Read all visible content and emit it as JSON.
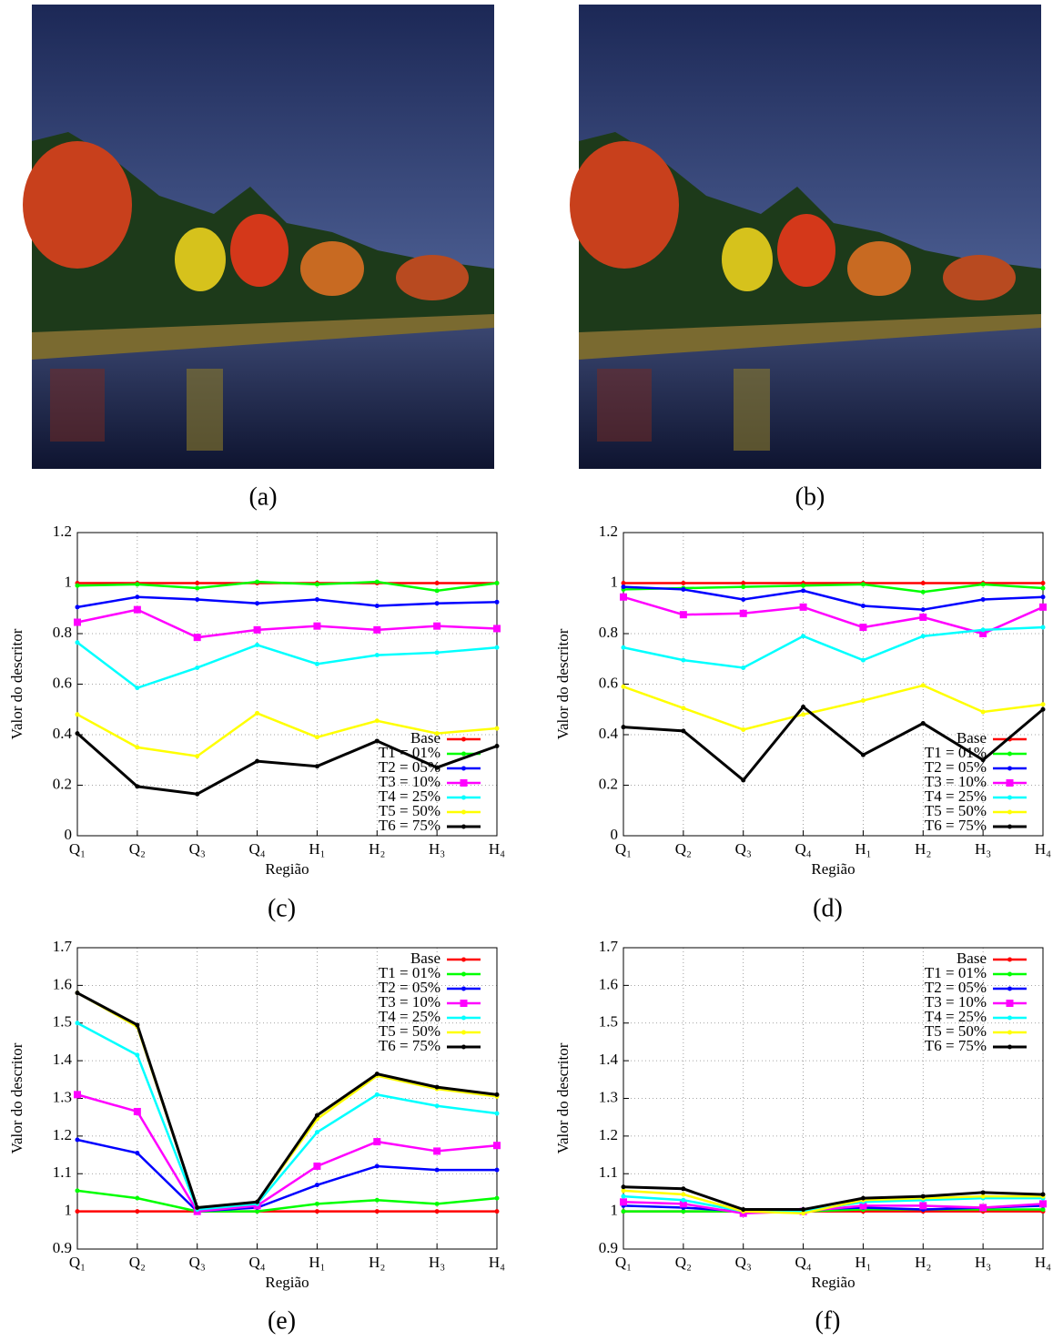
{
  "images": [
    {
      "caption": "(a)"
    },
    {
      "caption": "(b)"
    }
  ],
  "chart_data": [
    {
      "type": "line",
      "caption": "(c)",
      "xlabel": "Região",
      "ylabel": "Valor do descritor",
      "categories": [
        "Q₁",
        "Q₂",
        "Q₃",
        "Q₄",
        "H₁",
        "H₂",
        "H₃",
        "H₄"
      ],
      "ylim": [
        0,
        1.2
      ],
      "yticks": [
        0,
        0.2,
        0.4,
        0.6,
        0.8,
        1,
        1.2
      ],
      "grid": true,
      "legend": "lower right",
      "series": [
        {
          "name": "Base",
          "color": "#ff0000",
          "marker": "circle",
          "values": [
            1,
            1,
            1,
            1,
            1,
            1,
            1,
            1
          ]
        },
        {
          "name": "T1 = 01%",
          "color": "#00ff00",
          "marker": "circle",
          "values": [
            0.99,
            0.995,
            0.98,
            1.005,
            0.995,
            1.005,
            0.97,
            1.0
          ]
        },
        {
          "name": "T2 = 05%",
          "color": "#0000ff",
          "marker": "circle",
          "values": [
            0.905,
            0.945,
            0.935,
            0.92,
            0.935,
            0.91,
            0.92,
            0.925
          ]
        },
        {
          "name": "T3 = 10%",
          "color": "#ff00ff",
          "marker": "square",
          "values": [
            0.845,
            0.895,
            0.785,
            0.815,
            0.83,
            0.815,
            0.83,
            0.82
          ]
        },
        {
          "name": "T4 = 25%",
          "color": "#00ffff",
          "marker": "circle",
          "values": [
            0.765,
            0.585,
            0.665,
            0.755,
            0.68,
            0.715,
            0.725,
            0.745
          ]
        },
        {
          "name": "T5 = 50%",
          "color": "#ffff00",
          "marker": "circle",
          "values": [
            0.48,
            0.35,
            0.315,
            0.485,
            0.39,
            0.455,
            0.405,
            0.425
          ]
        },
        {
          "name": "T6 = 75%",
          "color": "#000000",
          "marker": "circle",
          "values": [
            0.405,
            0.195,
            0.165,
            0.295,
            0.275,
            0.375,
            0.27,
            0.355
          ]
        }
      ]
    },
    {
      "type": "line",
      "caption": "(d)",
      "xlabel": "Região",
      "ylabel": "Valor do descritor",
      "categories": [
        "Q₁",
        "Q₂",
        "Q₃",
        "Q₄",
        "H₁",
        "H₂",
        "H₃",
        "H₄"
      ],
      "ylim": [
        0,
        1.2
      ],
      "yticks": [
        0,
        0.2,
        0.4,
        0.6,
        0.8,
        1,
        1.2
      ],
      "grid": true,
      "legend": "lower right",
      "series": [
        {
          "name": "Base",
          "color": "#ff0000",
          "marker": "circle",
          "values": [
            1,
            1,
            1,
            1,
            1,
            1,
            1,
            1
          ]
        },
        {
          "name": "T1 = 01%",
          "color": "#00ff00",
          "marker": "circle",
          "values": [
            0.975,
            0.98,
            0.985,
            0.99,
            0.995,
            0.965,
            0.995,
            0.98
          ]
        },
        {
          "name": "T2 = 05%",
          "color": "#0000ff",
          "marker": "circle",
          "values": [
            0.985,
            0.975,
            0.935,
            0.97,
            0.91,
            0.895,
            0.935,
            0.945
          ]
        },
        {
          "name": "T3 = 10%",
          "color": "#ff00ff",
          "marker": "square",
          "values": [
            0.945,
            0.875,
            0.88,
            0.905,
            0.825,
            0.865,
            0.8,
            0.905
          ]
        },
        {
          "name": "T4 = 25%",
          "color": "#00ffff",
          "marker": "circle",
          "values": [
            0.745,
            0.695,
            0.665,
            0.79,
            0.695,
            0.79,
            0.815,
            0.825
          ]
        },
        {
          "name": "T5 = 50%",
          "color": "#ffff00",
          "marker": "circle",
          "values": [
            0.59,
            0.505,
            0.42,
            0.48,
            0.535,
            0.595,
            0.49,
            0.52
          ]
        },
        {
          "name": "T6 = 75%",
          "color": "#000000",
          "marker": "circle",
          "values": [
            0.43,
            0.415,
            0.22,
            0.51,
            0.32,
            0.445,
            0.3,
            0.5
          ]
        }
      ]
    },
    {
      "type": "line",
      "caption": "(e)",
      "xlabel": "Região",
      "ylabel": "Valor do descritor",
      "categories": [
        "Q₁",
        "Q₂",
        "Q₃",
        "Q₄",
        "H₁",
        "H₂",
        "H₃",
        "H₄"
      ],
      "ylim": [
        0.9,
        1.7
      ],
      "yticks": [
        0.9,
        1,
        1.1,
        1.2,
        1.3,
        1.4,
        1.5,
        1.6,
        1.7
      ],
      "grid": true,
      "legend": "upper right",
      "series": [
        {
          "name": "Base",
          "color": "#ff0000",
          "marker": "circle",
          "values": [
            1,
            1,
            1,
            1,
            1,
            1,
            1,
            1
          ]
        },
        {
          "name": "T1 = 01%",
          "color": "#00ff00",
          "marker": "circle",
          "values": [
            1.055,
            1.035,
            1.0,
            1.0,
            1.02,
            1.03,
            1.02,
            1.035
          ]
        },
        {
          "name": "T2 = 05%",
          "color": "#0000ff",
          "marker": "circle",
          "values": [
            1.19,
            1.155,
            1.0,
            1.01,
            1.07,
            1.12,
            1.11,
            1.11
          ]
        },
        {
          "name": "T3 = 10%",
          "color": "#ff00ff",
          "marker": "square",
          "values": [
            1.31,
            1.265,
            1.0,
            1.015,
            1.12,
            1.185,
            1.16,
            1.175
          ]
        },
        {
          "name": "T4 = 25%",
          "color": "#00ffff",
          "marker": "circle",
          "values": [
            1.5,
            1.415,
            1.005,
            1.02,
            1.21,
            1.31,
            1.28,
            1.26
          ]
        },
        {
          "name": "T5 = 50%",
          "color": "#ffff00",
          "marker": "circle",
          "values": [
            1.58,
            1.49,
            1.01,
            1.025,
            1.245,
            1.36,
            1.325,
            1.305
          ]
        },
        {
          "name": "T6 = 75%",
          "color": "#000000",
          "marker": "circle",
          "values": [
            1.58,
            1.495,
            1.01,
            1.025,
            1.255,
            1.365,
            1.33,
            1.31
          ]
        }
      ]
    },
    {
      "type": "line",
      "caption": "(f)",
      "xlabel": "Região",
      "ylabel": "Valor do descritor",
      "categories": [
        "Q₁",
        "Q₂",
        "Q₃",
        "Q₄",
        "H₁",
        "H₂",
        "H₃",
        "H₄"
      ],
      "ylim": [
        0.9,
        1.7
      ],
      "yticks": [
        0.9,
        1,
        1.1,
        1.2,
        1.3,
        1.4,
        1.5,
        1.6,
        1.7
      ],
      "grid": true,
      "legend": "upper right",
      "series": [
        {
          "name": "Base",
          "color": "#ff0000",
          "marker": "circle",
          "values": [
            1,
            1,
            1,
            1,
            1,
            1,
            1,
            1
          ]
        },
        {
          "name": "T1 = 01%",
          "color": "#00ff00",
          "marker": "circle",
          "values": [
            1.0,
            1.0,
            1.0,
            1.0,
            1.005,
            1.005,
            1.005,
            1.005
          ]
        },
        {
          "name": "T2 = 05%",
          "color": "#0000ff",
          "marker": "circle",
          "values": [
            1.015,
            1.01,
            1.0,
            1.005,
            1.01,
            1.005,
            1.01,
            1.015
          ]
        },
        {
          "name": "T3 = 10%",
          "color": "#ff00ff",
          "marker": "square",
          "values": [
            1.025,
            1.02,
            0.995,
            1.0,
            1.015,
            1.015,
            1.01,
            1.02
          ]
        },
        {
          "name": "T4 = 25%",
          "color": "#00ffff",
          "marker": "circle",
          "values": [
            1.04,
            1.03,
            1.0,
            1.0,
            1.025,
            1.03,
            1.035,
            1.035
          ]
        },
        {
          "name": "T5 = 50%",
          "color": "#ffff00",
          "marker": "circle",
          "values": [
            1.055,
            1.045,
            1.0,
            0.995,
            1.03,
            1.035,
            1.04,
            1.04
          ]
        },
        {
          "name": "T6 = 75%",
          "color": "#000000",
          "marker": "circle",
          "values": [
            1.065,
            1.06,
            1.005,
            1.005,
            1.035,
            1.04,
            1.05,
            1.045
          ]
        }
      ]
    }
  ]
}
